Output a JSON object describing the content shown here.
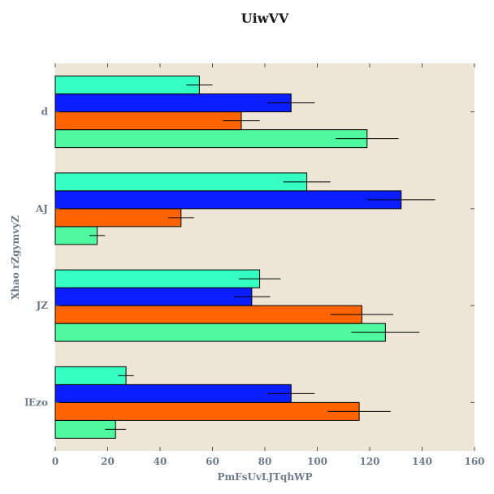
{
  "chart_data": {
    "type": "bar",
    "orientation": "horizontal",
    "title": "UiwVV",
    "xlabel": "PmFsUvLJTqhWP",
    "ylabel": "Xhao rZgymvyZ",
    "categories": [
      "lEzo",
      "JZ",
      "AJ",
      "d"
    ],
    "xlim": [
      0,
      160
    ],
    "xticks": [
      0,
      20,
      40,
      60,
      80,
      100,
      120,
      140,
      160
    ],
    "grid": false,
    "background": "#ede6d6",
    "series": [
      {
        "color": "#50f8a0",
        "values": [
          23,
          126,
          16,
          119
        ],
        "errors": [
          4,
          13,
          3,
          12
        ]
      },
      {
        "color": "#ff6400",
        "values": [
          116,
          117,
          48,
          71
        ],
        "errors": [
          12,
          12,
          5,
          7
        ]
      },
      {
        "color": "#0a1eff",
        "values": [
          90,
          75,
          132,
          90
        ],
        "errors": [
          9,
          7,
          13,
          9
        ]
      },
      {
        "color": "#36ffc2",
        "values": [
          27,
          78,
          96,
          55
        ],
        "errors": [
          3,
          8,
          9,
          5
        ]
      }
    ]
  }
}
